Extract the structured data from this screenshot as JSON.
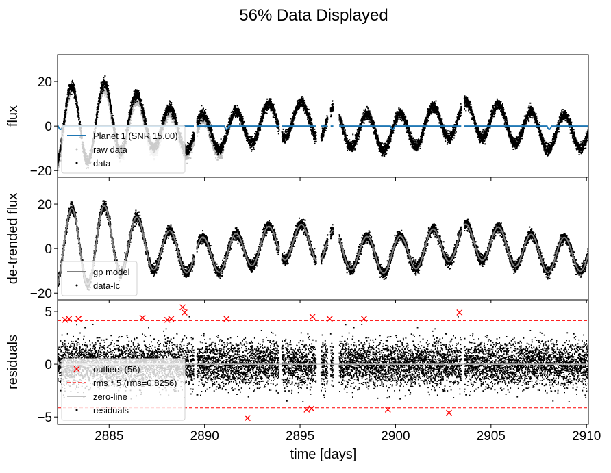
{
  "chart_data": {
    "type": "scatter",
    "title": "56% Data Displayed",
    "xlabel": "time [days]",
    "xlim": [
      2882.3,
      2910.1
    ],
    "x_ticks": [
      2885,
      2890,
      2895,
      2900,
      2905,
      2910
    ],
    "x_tick_labels": [
      "2885",
      "2890",
      "2895",
      "2900",
      "2905",
      "2910"
    ],
    "gaps": [
      [
        2889.45,
        2889.6
      ],
      [
        2893.9,
        2894.05
      ],
      [
        2895.85,
        2896.1
      ],
      [
        2896.45,
        2896.6
      ],
      [
        2896.75,
        2897.05
      ],
      [
        2903.45,
        2903.6
      ]
    ],
    "panels": [
      {
        "id": "flux",
        "ylabel": "flux",
        "ylim": [
          -23,
          32
        ],
        "y_ticks": [
          -20,
          0,
          20
        ],
        "y_tick_labels": [
          "−20",
          "0",
          "20"
        ],
        "legend": {
          "location": "lower-left",
          "entries": [
            {
              "label": "Planet 1 (SNR 15.00)",
              "marker": "line",
              "color": "#1f77b4"
            },
            {
              "label": "raw data",
              "marker": "dot",
              "color": "#c0c0c0"
            },
            {
              "label": "data",
              "marker": "dot",
              "color": "#000000"
            }
          ]
        },
        "series": [
          {
            "name": "raw data",
            "color": "#c0c0c0",
            "role": "raw light curve (shown where differs from data)"
          },
          {
            "name": "data",
            "color": "#000000",
            "role": "light curve"
          },
          {
            "name": "Planet 1 (SNR 15.00)",
            "color": "#1f77b4",
            "role": "transit model",
            "baseline": 0,
            "transit_times": [
              2882.45,
              2891.15,
              2899.85,
              2908.05
            ],
            "transit_depth": -1.5
          }
        ]
      },
      {
        "id": "detrended",
        "ylabel": "de-trended flux",
        "ylim": [
          -23,
          32
        ],
        "y_ticks": [
          -20,
          0,
          20
        ],
        "y_tick_labels": [
          "−20",
          "0",
          "20"
        ],
        "legend": {
          "location": "lower-left",
          "entries": [
            {
              "label": "gp model",
              "marker": "line",
              "color": "#808080"
            },
            {
              "label": "data-lc",
              "marker": "dot",
              "color": "#000000"
            }
          ]
        },
        "series": [
          {
            "name": "data-lc",
            "color": "#000000"
          },
          {
            "name": "gp model",
            "color": "#808080"
          }
        ]
      },
      {
        "id": "residuals",
        "ylabel": "residuals",
        "ylim": [
          -5.7,
          6.1
        ],
        "y_ticks": [
          -5,
          0,
          5
        ],
        "y_tick_labels": [
          "−5",
          "0",
          "5"
        ],
        "rms": 0.8256,
        "rms_multiplier": 5,
        "legend": {
          "location": "lower-left",
          "entries": [
            {
              "label": "outliers (56)",
              "marker": "x",
              "color": "#ff0000"
            },
            {
              "label": "rms * 5 (rms=0.8256)",
              "marker": "dashed",
              "color": "#ff0000"
            },
            {
              "label": "zero-line",
              "marker": "line",
              "color": "#c0c0c0"
            },
            {
              "label": "residuals",
              "marker": "dot",
              "color": "#000000"
            }
          ]
        },
        "outliers": [
          {
            "x": 2882.7,
            "y": 4.2
          },
          {
            "x": 2882.9,
            "y": 4.3
          },
          {
            "x": 2883.4,
            "y": 4.3
          },
          {
            "x": 2886.75,
            "y": 4.4
          },
          {
            "x": 2888.05,
            "y": 4.2
          },
          {
            "x": 2888.25,
            "y": 4.3
          },
          {
            "x": 2888.85,
            "y": 5.4
          },
          {
            "x": 2888.95,
            "y": 4.9
          },
          {
            "x": 2891.15,
            "y": 4.3
          },
          {
            "x": 2892.25,
            "y": -5.1
          },
          {
            "x": 2895.35,
            "y": -4.3
          },
          {
            "x": 2895.6,
            "y": -4.2
          },
          {
            "x": 2895.65,
            "y": 4.5
          },
          {
            "x": 2896.55,
            "y": 4.3
          },
          {
            "x": 2898.35,
            "y": 4.3
          },
          {
            "x": 2899.6,
            "y": -4.3
          },
          {
            "x": 2902.8,
            "y": -4.6
          },
          {
            "x": 2903.35,
            "y": 4.9
          }
        ]
      }
    ],
    "colors": {
      "data": "#000000",
      "raw": "#c0c0c0",
      "transit": "#1f77b4",
      "gp": "#808080",
      "outlier": "#ff0000",
      "zero": "#c0c0c0"
    }
  }
}
